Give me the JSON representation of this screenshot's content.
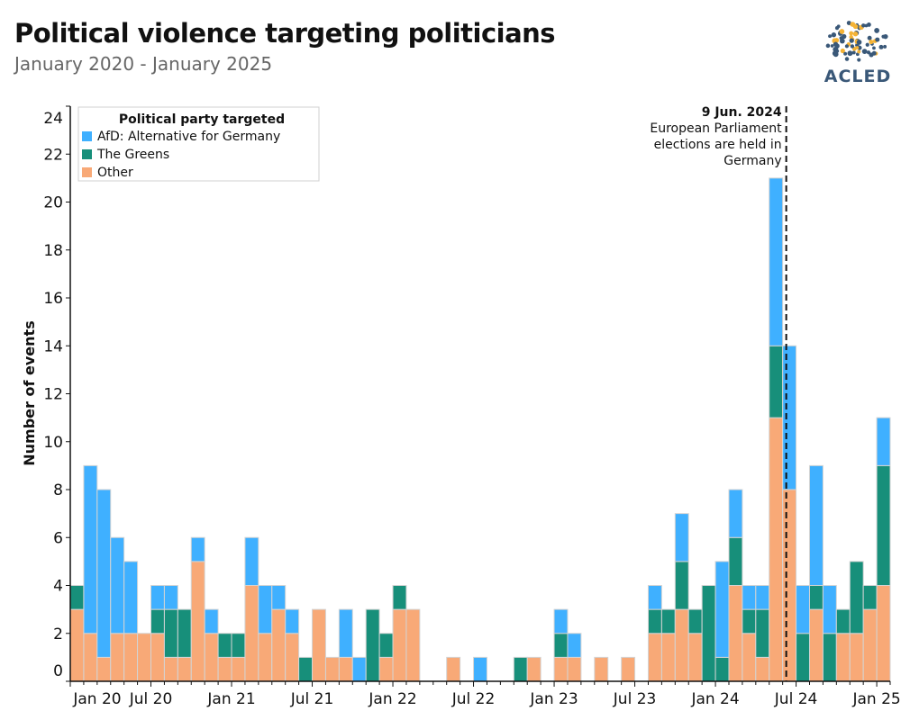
{
  "header": {
    "title": "Political violence targeting politicians",
    "subtitle": "January 2020 - January 2025",
    "logo_text": "ACLED"
  },
  "chart_data": {
    "type": "bar",
    "stacked": true,
    "ylabel": "Number of events",
    "xlabel": "",
    "ylim": [
      0,
      24
    ],
    "yticks": [
      0,
      2,
      4,
      6,
      8,
      10,
      12,
      14,
      16,
      18,
      20,
      22,
      24
    ],
    "grid": false,
    "x_start": "2020-01",
    "x_end": "2025-01",
    "x_tick_labels": [
      {
        "label": "Jan 20",
        "month": "2020-01"
      },
      {
        "label": "Jul 20",
        "month": "2020-07"
      },
      {
        "label": "Jan 21",
        "month": "2021-01"
      },
      {
        "label": "Jul 21",
        "month": "2021-07"
      },
      {
        "label": "Jan 22",
        "month": "2022-01"
      },
      {
        "label": "Jul 22",
        "month": "2022-07"
      },
      {
        "label": "Jan 23",
        "month": "2023-01"
      },
      {
        "label": "Jul 23",
        "month": "2023-07"
      },
      {
        "label": "Jan 24",
        "month": "2024-01"
      },
      {
        "label": "Jul 24",
        "month": "2024-07"
      },
      {
        "label": "Jan 25",
        "month": "2025-01"
      }
    ],
    "legend": {
      "title": "Political party targeted",
      "placement": "top-left"
    },
    "series": [
      {
        "name": "Other",
        "color": "#f8a977",
        "values": [
          3,
          2,
          1,
          2,
          2,
          2,
          2,
          1,
          1,
          5,
          2,
          1,
          1,
          4,
          2,
          3,
          2,
          0,
          3,
          1,
          1,
          0,
          0,
          1,
          3,
          3,
          0,
          0,
          1,
          0,
          0,
          0,
          0,
          0,
          1,
          0,
          1,
          1,
          0,
          1,
          0,
          1,
          0,
          2,
          2,
          3,
          2,
          0,
          0,
          4,
          2,
          1,
          11,
          8,
          0,
          3,
          0,
          2,
          2,
          3,
          4
        ]
      },
      {
        "name": "The Greens",
        "color": "#178f7a",
        "values": [
          1,
          0,
          0,
          0,
          0,
          0,
          1,
          2,
          2,
          0,
          0,
          1,
          1,
          0,
          0,
          0,
          0,
          1,
          0,
          0,
          0,
          0,
          3,
          1,
          1,
          0,
          0,
          0,
          0,
          0,
          0,
          0,
          0,
          1,
          0,
          0,
          1,
          0,
          0,
          0,
          0,
          0,
          0,
          1,
          1,
          2,
          1,
          4,
          1,
          2,
          1,
          2,
          3,
          0,
          2,
          1,
          2,
          1,
          3,
          1,
          5
        ]
      },
      {
        "name": "AfD: Alternative for Germany",
        "color": "#3fb0ff",
        "values": [
          0,
          7,
          7,
          4,
          3,
          0,
          1,
          1,
          0,
          1,
          1,
          0,
          0,
          2,
          2,
          1,
          1,
          0,
          0,
          0,
          2,
          1,
          0,
          0,
          0,
          0,
          0,
          0,
          0,
          0,
          1,
          0,
          0,
          0,
          0,
          0,
          1,
          1,
          0,
          0,
          0,
          0,
          0,
          1,
          0,
          2,
          0,
          0,
          4,
          2,
          1,
          1,
          7,
          6,
          2,
          5,
          2,
          0,
          0,
          0,
          2
        ]
      }
    ],
    "legend_order": [
      "AfD: Alternative for Germany",
      "The Greens",
      "Other"
    ],
    "annotation": {
      "date": "2024-06-09",
      "title": "9 Jun. 2024",
      "lines": [
        "European Parliament",
        "elections are held in",
        "Germany"
      ]
    }
  }
}
